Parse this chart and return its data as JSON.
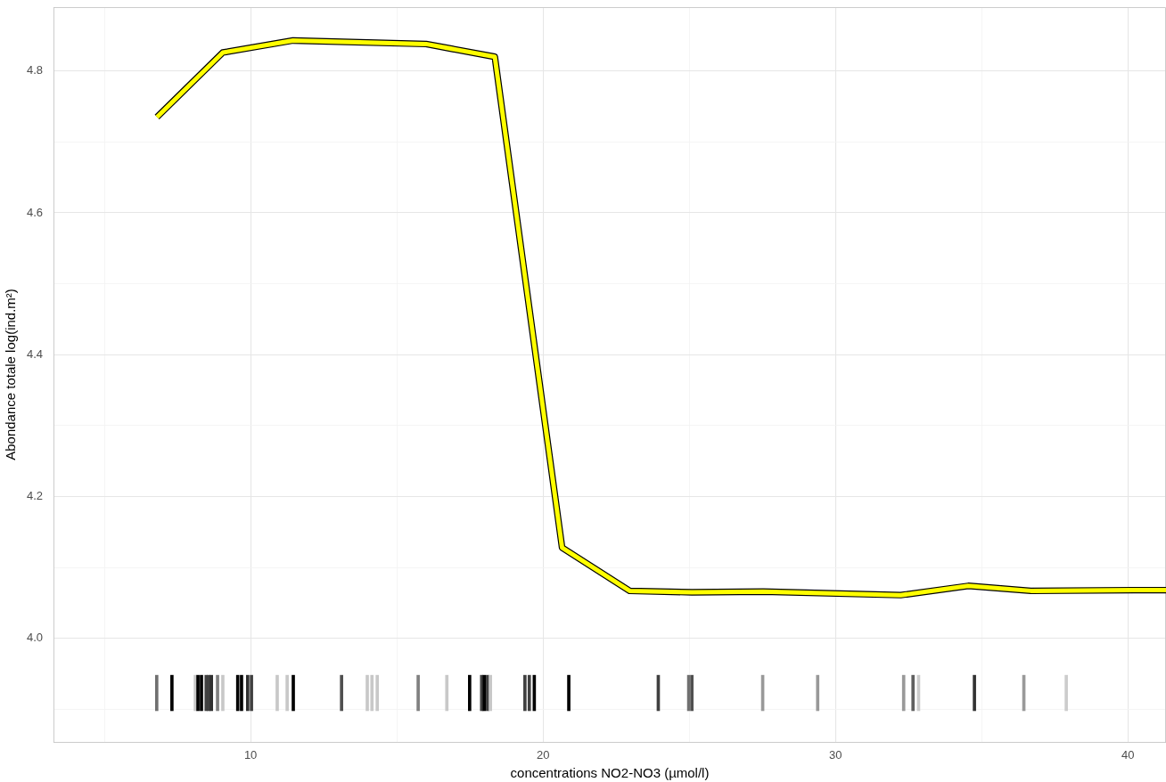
{
  "chart_data": {
    "type": "line",
    "xlabel": "concentrations NO2-NO3 (µmol/l)",
    "ylabel": "Abondance totale log(ind.m²)",
    "xlim": [
      3.26,
      41.3
    ],
    "ylim": [
      3.854,
      4.89
    ],
    "xticks": [
      {
        "value": 5,
        "label": null
      },
      10,
      {
        "value": 15,
        "label": null
      },
      20,
      {
        "value": 25,
        "label": null
      },
      30,
      {
        "value": 35,
        "label": null
      },
      40
    ],
    "yticks": [
      {
        "value": 3.9,
        "label": null
      },
      {
        "value": 4,
        "label": "4.0"
      },
      {
        "value": 4.1,
        "label": null
      },
      4.2,
      {
        "value": 4.3,
        "label": null
      },
      4.4,
      {
        "value": 4.5,
        "label": null
      },
      4.6,
      {
        "value": 4.7,
        "label": null
      },
      4.8
    ],
    "grid": true,
    "marker": "none",
    "series": [
      {
        "color": "#ffff00",
        "x": [
          6.8,
          9.05,
          11.45,
          16.0,
          18.35,
          20.65,
          22.96,
          25.09,
          27.53,
          32.23,
          34.54,
          36.68,
          40.21,
          41.3
        ],
        "values": [
          4.735,
          4.826,
          4.843,
          4.838,
          4.82,
          4.128,
          4.067,
          4.065,
          4.066,
          4.061,
          4.074,
          4.067,
          4.068,
          4.068
        ]
      },
      {
        "type": "bar",
        "x": [
          6.79,
          7.31,
          8.11,
          8.2,
          8.32,
          8.48,
          8.57,
          8.66,
          8.87,
          9.05,
          9.56,
          9.69,
          9.9,
          10.03,
          10.91,
          11.25,
          11.46,
          13.11,
          13.99,
          14.15,
          14.33,
          15.73,
          16.71,
          17.49,
          17.9,
          17.99,
          18.1,
          18.2,
          19.38,
          19.53,
          19.7,
          20.88,
          23.94,
          24.98,
          25.09,
          27.51,
          29.39,
          32.33,
          32.65,
          32.84,
          34.75,
          36.44,
          37.89
        ],
        "base": [
          3.898,
          3.898,
          3.898,
          3.898,
          3.898,
          3.898,
          3.898,
          3.898,
          3.898,
          3.898,
          3.898,
          3.898,
          3.898,
          3.898,
          3.898,
          3.898,
          3.898,
          3.898,
          3.898,
          3.898,
          3.898,
          3.898,
          3.898,
          3.898,
          3.898,
          3.898,
          3.898,
          3.898,
          3.898,
          3.898,
          3.898,
          3.898,
          3.898,
          3.898,
          3.898,
          3.898,
          3.898,
          3.898,
          3.898,
          3.898,
          3.898,
          3.898,
          3.898
        ],
        "values": [
          0.05,
          0.05,
          0.05,
          0.05,
          0.05,
          0.05,
          0.05,
          0.05,
          0.05,
          0.05,
          0.05,
          0.05,
          0.05,
          0.05,
          0.05,
          0.05,
          0.05,
          0.05,
          0.05,
          0.05,
          0.05,
          0.05,
          0.05,
          0.05,
          0.05,
          0.05,
          0.05,
          0.05,
          0.05,
          0.05,
          0.05,
          0.05,
          0.05,
          0.05,
          0.05,
          0.05,
          0.05,
          0.05,
          0.05,
          0.05,
          0.05,
          0.05,
          0.05
        ],
        "colors": [
          "#707070",
          "#000000",
          "#c8c8c8",
          "#000000",
          "#000000",
          "#404040",
          "#404040",
          "#303030",
          "#808080",
          "#c8c8c8",
          "#000000",
          "#000000",
          "#303030",
          "#404040",
          "#c8c8c8",
          "#c8c8c8",
          "#000000",
          "#505050",
          "#c8c8c8",
          "#c8c8c8",
          "#c8c8c8",
          "#808080",
          "#c8c8c8",
          "#000000",
          "#404040",
          "#000000",
          "#404040",
          "#c8c8c8",
          "#404040",
          "#404040",
          "#000000",
          "#000000",
          "#404040",
          "#707070",
          "#505050",
          "#999999",
          "#999999",
          "#999999",
          "#606060",
          "#cccccc",
          "#333333",
          "#999999",
          "#cccccc"
        ]
      }
    ]
  }
}
